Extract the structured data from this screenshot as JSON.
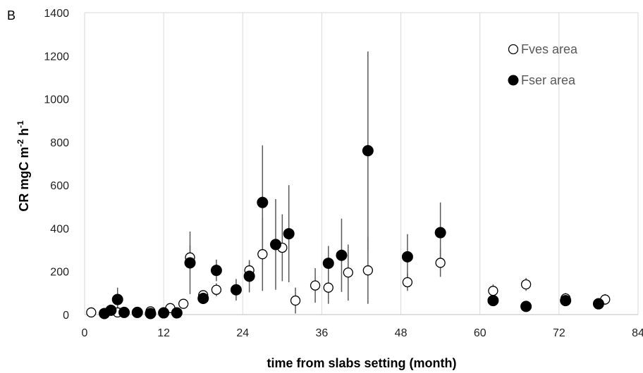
{
  "chart_data": {
    "type": "scatter",
    "panel_label": "B",
    "xlabel": "time from slabs setting (month)",
    "ylabel": "CR mgC m",
    "ylabel_sup1": "-2",
    "ylabel_mid": " h",
    "ylabel_sup2": "-1",
    "xlim": [
      0,
      84
    ],
    "ylim": [
      0,
      1400
    ],
    "xticks": [
      0,
      12,
      24,
      36,
      48,
      60,
      72,
      84
    ],
    "yticks": [
      0,
      200,
      400,
      600,
      800,
      1000,
      1200,
      1400
    ],
    "grid": "vertical",
    "legend_position": "top-right",
    "series": [
      {
        "name": "Fves area",
        "marker": "open-circle",
        "points": [
          {
            "x": 1,
            "y": 10,
            "err": 0
          },
          {
            "x": 5,
            "y": 10,
            "err": 5
          },
          {
            "x": 10,
            "y": 15,
            "err": 5
          },
          {
            "x": 13,
            "y": 30,
            "err": 0
          },
          {
            "x": 15,
            "y": 50,
            "err": 0
          },
          {
            "x": 16,
            "y": 265,
            "err": 55
          },
          {
            "x": 18,
            "y": 90,
            "err": 20
          },
          {
            "x": 20,
            "y": 115,
            "err": 30
          },
          {
            "x": 25,
            "y": 205,
            "err": 40
          },
          {
            "x": 27,
            "y": 280,
            "err": 170
          },
          {
            "x": 30,
            "y": 310,
            "err": 155
          },
          {
            "x": 32,
            "y": 65,
            "err": 60
          },
          {
            "x": 35,
            "y": 135,
            "err": 80
          },
          {
            "x": 37,
            "y": 125,
            "err": 75
          },
          {
            "x": 40,
            "y": 195,
            "err": 130
          },
          {
            "x": 43,
            "y": 205,
            "err": 155
          },
          {
            "x": 49,
            "y": 150,
            "err": 40
          },
          {
            "x": 54,
            "y": 240,
            "err": 65
          },
          {
            "x": 62,
            "y": 110,
            "err": 30
          },
          {
            "x": 67,
            "y": 140,
            "err": 30
          },
          {
            "x": 73,
            "y": 75,
            "err": 25
          },
          {
            "x": 79,
            "y": 70,
            "err": 25
          }
        ]
      },
      {
        "name": "Fser area",
        "marker": "filled-circle",
        "points": [
          {
            "x": 3,
            "y": 5,
            "err": 0
          },
          {
            "x": 4,
            "y": 20,
            "err": 0
          },
          {
            "x": 5,
            "y": 70,
            "err": 55
          },
          {
            "x": 6,
            "y": 10,
            "err": 0
          },
          {
            "x": 8,
            "y": 10,
            "err": 0
          },
          {
            "x": 10,
            "y": 5,
            "err": 0
          },
          {
            "x": 12,
            "y": 8,
            "err": 0
          },
          {
            "x": 14,
            "y": 8,
            "err": 0
          },
          {
            "x": 16,
            "y": 240,
            "err": 145
          },
          {
            "x": 18,
            "y": 75,
            "err": 25
          },
          {
            "x": 20,
            "y": 205,
            "err": 50
          },
          {
            "x": 23,
            "y": 115,
            "err": 50
          },
          {
            "x": 25,
            "y": 178,
            "err": 75
          },
          {
            "x": 27,
            "y": 520,
            "err": 265
          },
          {
            "x": 29,
            "y": 325,
            "err": 210
          },
          {
            "x": 31,
            "y": 375,
            "err": 225
          },
          {
            "x": 37,
            "y": 238,
            "err": 80
          },
          {
            "x": 39,
            "y": 275,
            "err": 170
          },
          {
            "x": 43,
            "y": 760,
            "err": 460
          },
          {
            "x": 49,
            "y": 268,
            "err": 105
          },
          {
            "x": 54,
            "y": 380,
            "err": 140
          },
          {
            "x": 62,
            "y": 65,
            "err": 15
          },
          {
            "x": 67,
            "y": 38,
            "err": 0
          },
          {
            "x": 73,
            "y": 65,
            "err": 25
          },
          {
            "x": 78,
            "y": 50,
            "err": 15
          }
        ]
      }
    ]
  }
}
